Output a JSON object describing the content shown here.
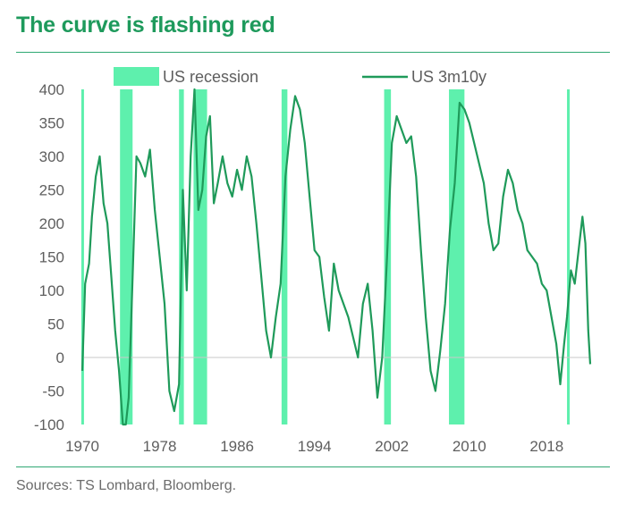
{
  "header": {
    "title": "The curve is flashing red"
  },
  "footer": {
    "source": "Sources: TS Lombard, Bloomberg."
  },
  "colors": {
    "line": "#1f9a5a",
    "recession": "#5ef0ad",
    "title": "#1e9a5c",
    "rule": "#2fa873"
  },
  "chart_data": {
    "type": "line",
    "title": "The curve is flashing red",
    "xlabel": "",
    "ylabel": "",
    "xlim": [
      1970,
      2022.5
    ],
    "ylim": [
      -100,
      400
    ],
    "x_ticks": [
      1970,
      1978,
      1986,
      1994,
      2002,
      2010,
      2018
    ],
    "y_ticks": [
      400,
      350,
      300,
      250,
      200,
      150,
      100,
      50,
      0,
      -50,
      -100
    ],
    "grid": false,
    "legend_position": "top",
    "legend": [
      {
        "label": "US recession",
        "kind": "area"
      },
      {
        "label": "US 3m10y",
        "kind": "line"
      }
    ],
    "recessions": [
      [
        1969.9,
        1970.1
      ],
      [
        1973.9,
        1975.2
      ],
      [
        1980.0,
        1980.5
      ],
      [
        1981.5,
        1982.9
      ],
      [
        1990.6,
        1991.2
      ],
      [
        2001.2,
        2001.9
      ],
      [
        2007.9,
        2009.5
      ],
      [
        2020.1,
        2020.35
      ]
    ],
    "series": [
      {
        "name": "US 3m10y",
        "x": [
          1970.0,
          1970.3,
          1970.7,
          1971.0,
          1971.4,
          1971.8,
          1972.2,
          1972.6,
          1973.0,
          1973.4,
          1973.8,
          1974.2,
          1974.5,
          1974.8,
          1975.2,
          1975.6,
          1976.0,
          1976.5,
          1977.0,
          1977.5,
          1978.0,
          1978.5,
          1979.0,
          1979.5,
          1980.0,
          1980.4,
          1980.8,
          1981.2,
          1981.6,
          1982.0,
          1982.4,
          1982.8,
          1983.2,
          1983.6,
          1984.0,
          1984.5,
          1985.0,
          1985.5,
          1986.0,
          1986.5,
          1987.0,
          1987.5,
          1988.0,
          1988.5,
          1989.0,
          1989.5,
          1990.0,
          1990.5,
          1991.0,
          1991.5,
          1992.0,
          1992.5,
          1993.0,
          1993.5,
          1994.0,
          1994.5,
          1995.0,
          1995.5,
          1996.0,
          1996.5,
          1997.0,
          1997.5,
          1998.0,
          1998.5,
          1999.0,
          1999.5,
          2000.0,
          2000.5,
          2001.0,
          2001.5,
          2002.0,
          2002.5,
          2003.0,
          2003.5,
          2004.0,
          2004.5,
          2005.0,
          2005.5,
          2006.0,
          2006.5,
          2007.0,
          2007.5,
          2008.0,
          2008.5,
          2009.0,
          2009.5,
          2010.0,
          2010.5,
          2011.0,
          2011.5,
          2012.0,
          2012.5,
          2013.0,
          2013.5,
          2014.0,
          2014.5,
          2015.0,
          2015.5,
          2016.0,
          2016.5,
          2017.0,
          2017.5,
          2018.0,
          2018.5,
          2019.0,
          2019.4,
          2019.8,
          2020.1,
          2020.5,
          2020.9,
          2021.3,
          2021.7,
          2022.0,
          2022.3,
          2022.5
        ],
        "values": [
          -20,
          110,
          140,
          210,
          270,
          300,
          230,
          200,
          120,
          40,
          -20,
          -100,
          -100,
          -60,
          120,
          300,
          290,
          270,
          310,
          220,
          150,
          80,
          -50,
          -80,
          -40,
          250,
          100,
          300,
          400,
          220,
          250,
          330,
          360,
          230,
          260,
          300,
          260,
          240,
          280,
          250,
          300,
          270,
          200,
          120,
          40,
          0,
          60,
          110,
          270,
          340,
          390,
          370,
          320,
          240,
          160,
          150,
          90,
          40,
          140,
          100,
          80,
          60,
          30,
          0,
          80,
          110,
          40,
          -60,
          0,
          150,
          320,
          360,
          340,
          320,
          330,
          270,
          160,
          60,
          -20,
          -50,
          10,
          80,
          190,
          260,
          380,
          370,
          350,
          320,
          290,
          260,
          200,
          160,
          170,
          240,
          280,
          260,
          220,
          200,
          160,
          150,
          140,
          110,
          100,
          60,
          20,
          -40,
          20,
          60,
          130,
          110,
          160,
          210,
          170,
          40,
          -10
        ]
      }
    ]
  }
}
